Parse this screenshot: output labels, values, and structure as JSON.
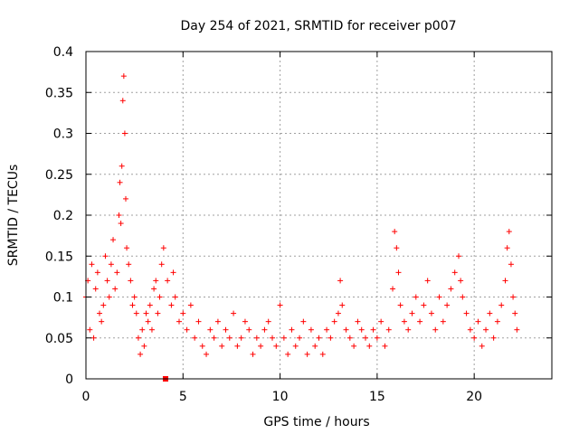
{
  "chart_data": {
    "type": "scatter",
    "title": "Day 254 of 2021, SRMTID for receiver p007",
    "xlabel": "GPS time / hours",
    "ylabel": "SRMTID / TECUs",
    "xlim": [
      0,
      24
    ],
    "ylim": [
      0,
      0.4
    ],
    "grid": true,
    "xticks": [
      0,
      5,
      10,
      15,
      20
    ],
    "xtick_labels": [
      "0",
      "5",
      "10",
      "15",
      "20"
    ],
    "yticks": [
      0,
      0.05,
      0.1,
      0.15,
      0.2,
      0.25,
      0.3,
      0.35,
      0.4
    ],
    "ytick_labels": [
      "0",
      "0.05",
      "0.1",
      "0.15",
      "0.2",
      "0.25",
      "0.3",
      "0.35",
      "0.4"
    ],
    "marker": "+",
    "marker_color": "#ff0000",
    "extra_marker": {
      "x": 4.1,
      "y": 0.0,
      "shape": "square"
    },
    "series": [
      {
        "name": "p007",
        "x": [
          0.0,
          0.1,
          0.2,
          0.3,
          0.4,
          0.5,
          0.6,
          0.7,
          0.8,
          0.9,
          1.0,
          1.1,
          1.2,
          1.3,
          1.4,
          1.5,
          1.6,
          1.7,
          1.75,
          1.8,
          1.85,
          1.9,
          1.95,
          2.0,
          2.05,
          2.1,
          2.2,
          2.3,
          2.4,
          2.5,
          2.6,
          2.7,
          2.8,
          2.9,
          3.0,
          3.1,
          3.2,
          3.3,
          3.4,
          3.5,
          3.6,
          3.7,
          3.8,
          3.9,
          4.0,
          4.2,
          4.4,
          4.5,
          4.6,
          4.8,
          5.0,
          5.2,
          5.4,
          5.6,
          5.8,
          6.0,
          6.2,
          6.4,
          6.6,
          6.8,
          7.0,
          7.2,
          7.4,
          7.6,
          7.8,
          8.0,
          8.2,
          8.4,
          8.6,
          8.8,
          9.0,
          9.2,
          9.4,
          9.6,
          9.8,
          10.0,
          10.2,
          10.4,
          10.6,
          10.8,
          11.0,
          11.2,
          11.4,
          11.6,
          11.8,
          12.0,
          12.2,
          12.4,
          12.6,
          12.8,
          13.0,
          13.1,
          13.2,
          13.4,
          13.6,
          13.8,
          14.0,
          14.2,
          14.4,
          14.6,
          14.8,
          15.0,
          15.2,
          15.4,
          15.6,
          15.8,
          15.9,
          16.0,
          16.1,
          16.2,
          16.4,
          16.6,
          16.8,
          17.0,
          17.2,
          17.4,
          17.6,
          17.8,
          18.0,
          18.2,
          18.4,
          18.6,
          18.8,
          19.0,
          19.2,
          19.3,
          19.4,
          19.6,
          19.8,
          20.0,
          20.2,
          20.4,
          20.6,
          20.8,
          21.0,
          21.2,
          21.4,
          21.6,
          21.7,
          21.8,
          21.9,
          22.0,
          22.1,
          22.2
        ],
        "y": [
          0.1,
          0.12,
          0.06,
          0.14,
          0.05,
          0.11,
          0.13,
          0.08,
          0.07,
          0.09,
          0.15,
          0.12,
          0.1,
          0.14,
          0.17,
          0.11,
          0.13,
          0.2,
          0.24,
          0.19,
          0.26,
          0.34,
          0.37,
          0.3,
          0.22,
          0.16,
          0.14,
          0.12,
          0.09,
          0.1,
          0.08,
          0.05,
          0.03,
          0.06,
          0.04,
          0.08,
          0.07,
          0.09,
          0.06,
          0.11,
          0.12,
          0.08,
          0.1,
          0.14,
          0.16,
          0.12,
          0.09,
          0.13,
          0.1,
          0.07,
          0.08,
          0.06,
          0.09,
          0.05,
          0.07,
          0.04,
          0.03,
          0.06,
          0.05,
          0.07,
          0.04,
          0.06,
          0.05,
          0.08,
          0.04,
          0.05,
          0.07,
          0.06,
          0.03,
          0.05,
          0.04,
          0.06,
          0.07,
          0.05,
          0.04,
          0.09,
          0.05,
          0.03,
          0.06,
          0.04,
          0.05,
          0.07,
          0.03,
          0.06,
          0.04,
          0.05,
          0.03,
          0.06,
          0.05,
          0.07,
          0.08,
          0.12,
          0.09,
          0.06,
          0.05,
          0.04,
          0.07,
          0.06,
          0.05,
          0.04,
          0.06,
          0.05,
          0.07,
          0.04,
          0.06,
          0.11,
          0.18,
          0.16,
          0.13,
          0.09,
          0.07,
          0.06,
          0.08,
          0.1,
          0.07,
          0.09,
          0.12,
          0.08,
          0.06,
          0.1,
          0.07,
          0.09,
          0.11,
          0.13,
          0.15,
          0.12,
          0.1,
          0.08,
          0.06,
          0.05,
          0.07,
          0.04,
          0.06,
          0.08,
          0.05,
          0.07,
          0.09,
          0.12,
          0.16,
          0.18,
          0.14,
          0.1,
          0.08,
          0.06
        ]
      }
    ]
  }
}
